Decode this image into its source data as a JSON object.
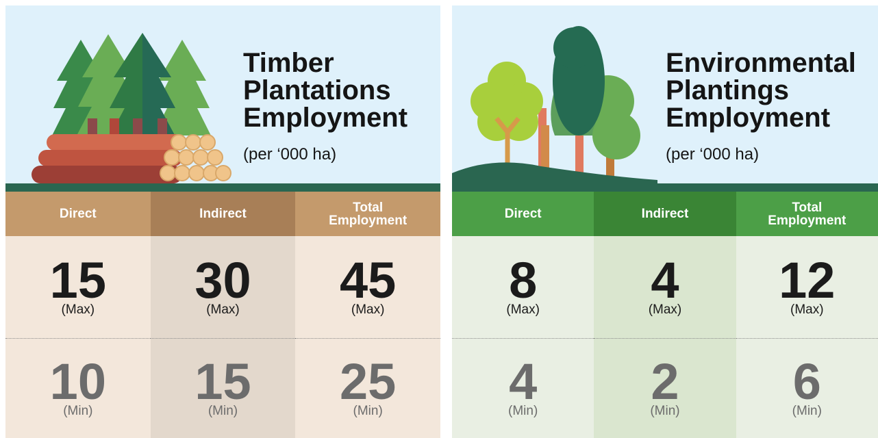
{
  "panels": [
    {
      "title": "Timber Plantations Employment",
      "subtitle": "(per ‘000 ha)",
      "columns": [
        "Direct",
        "Indirect",
        "Total Employment"
      ],
      "rows": [
        {
          "values": [
            15,
            30,
            45
          ],
          "label": "(Max)"
        },
        {
          "values": [
            10,
            15,
            25
          ],
          "label": "(Min)"
        }
      ]
    },
    {
      "title": "Environmental Plantings Employment",
      "subtitle": "(per ‘000 ha)",
      "columns": [
        "Direct",
        "Indirect",
        "Total Employment"
      ],
      "rows": [
        {
          "values": [
            8,
            4,
            12
          ],
          "label": "(Max)"
        },
        {
          "values": [
            4,
            2,
            6
          ],
          "label": "(Min)"
        }
      ]
    }
  ]
}
